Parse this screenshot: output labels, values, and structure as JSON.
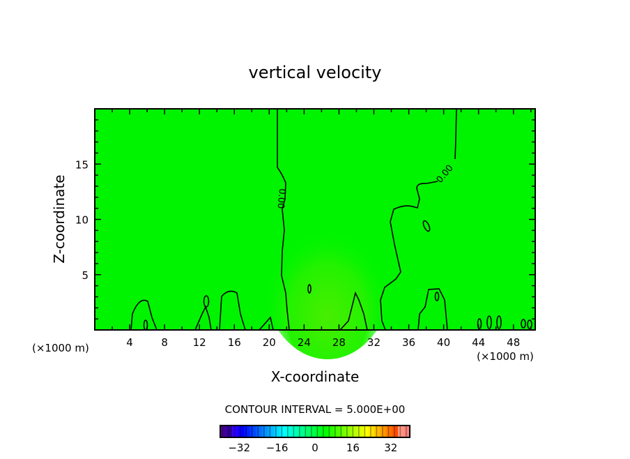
{
  "chart_data": {
    "type": "heatmap",
    "title": "vertical velocity",
    "xlabel": "X-coordinate",
    "ylabel": "Z-coordinate",
    "x_unit_left": "(×1000 m)",
    "x_unit_right": "(×1000 m)",
    "xlim": [
      0,
      50.5
    ],
    "ylim": [
      0,
      20
    ],
    "xticks": [
      4,
      8,
      12,
      16,
      20,
      24,
      28,
      32,
      36,
      40,
      44,
      48
    ],
    "yticks": [
      5,
      10,
      15
    ],
    "contour_interval_text": "CONTOUR INTERVAL = 5.000E+00",
    "contour_interval": 5.0,
    "contour_labels": [
      "0.00",
      "0.00"
    ],
    "colorbar": {
      "range": [
        -40,
        40
      ],
      "ticks": [
        -32,
        -16,
        0,
        16,
        32
      ],
      "tick_labels": [
        "−32",
        "−16",
        "0",
        "16",
        "32"
      ]
    },
    "field_description_value_range": [
      -5,
      5
    ],
    "colors": {
      "field": "#00f400",
      "updraft": "#3cf000",
      "line": "#000000"
    }
  }
}
